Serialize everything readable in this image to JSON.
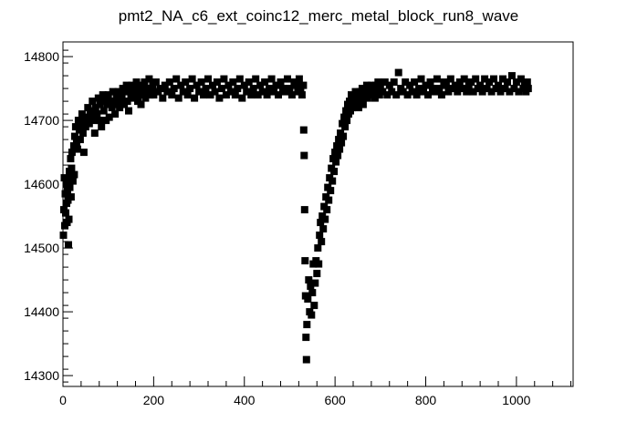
{
  "chart_data": {
    "type": "scatter",
    "title": "pmt2_NA_c6_ext_coinc12_merc_metal_block_run8_wave",
    "xlabel": "",
    "ylabel": "",
    "xlim": [
      0,
      1125
    ],
    "ylim": [
      14283,
      14823
    ],
    "x_ticks": [
      0,
      200,
      400,
      600,
      800,
      1000
    ],
    "y_ticks": [
      14300,
      14400,
      14500,
      14600,
      14700,
      14800
    ],
    "x_tick_labels": [
      "0",
      "200",
      "400",
      "600",
      "800",
      "1000"
    ],
    "y_tick_labels": [
      "14300",
      "14400",
      "14500",
      "14600",
      "14700",
      "14800"
    ],
    "marker": "square",
    "marker_color": "#000000",
    "grid": false,
    "legend": "none",
    "series": [
      {
        "points": [
          [
            1,
            14520
          ],
          [
            2,
            14560
          ],
          [
            3,
            14610
          ],
          [
            4,
            14535
          ],
          [
            5,
            14585
          ],
          [
            6,
            14555
          ],
          [
            7,
            14600
          ],
          [
            8,
            14570
          ],
          [
            9,
            14540
          ],
          [
            10,
            14590
          ],
          [
            11,
            14575
          ],
          [
            12,
            14505
          ],
          [
            13,
            14545
          ],
          [
            14,
            14620
          ],
          [
            15,
            14595
          ],
          [
            16,
            14610
          ],
          [
            17,
            14640
          ],
          [
            18,
            14580
          ],
          [
            19,
            14625
          ],
          [
            20,
            14650
          ],
          [
            22,
            14605
          ],
          [
            24,
            14660
          ],
          [
            25,
            14615
          ],
          [
            26,
            14675
          ],
          [
            28,
            14690
          ],
          [
            30,
            14665
          ],
          [
            32,
            14655
          ],
          [
            34,
            14700
          ],
          [
            36,
            14685
          ],
          [
            38,
            14670
          ],
          [
            40,
            14695
          ],
          [
            42,
            14710
          ],
          [
            44,
            14680
          ],
          [
            46,
            14650
          ],
          [
            48,
            14705
          ],
          [
            50,
            14690
          ],
          [
            52,
            14700
          ],
          [
            55,
            14720
          ],
          [
            58,
            14695
          ],
          [
            60,
            14715
          ],
          [
            62,
            14705
          ],
          [
            65,
            14730
          ],
          [
            68,
            14700
          ],
          [
            70,
            14680
          ],
          [
            72,
            14720
          ],
          [
            75,
            14710
          ],
          [
            78,
            14735
          ],
          [
            80,
            14700
          ],
          [
            82,
            14725
          ],
          [
            85,
            14690
          ],
          [
            88,
            14740
          ],
          [
            90,
            14715
          ],
          [
            92,
            14730
          ],
          [
            95,
            14700
          ],
          [
            98,
            14725
          ],
          [
            100,
            14740
          ],
          [
            102,
            14705
          ],
          [
            105,
            14730
          ],
          [
            108,
            14720
          ],
          [
            110,
            14745
          ],
          [
            112,
            14725
          ],
          [
            115,
            14710
          ],
          [
            118,
            14740
          ],
          [
            120,
            14730
          ],
          [
            122,
            14745
          ],
          [
            125,
            14720
          ],
          [
            128,
            14740
          ],
          [
            130,
            14735
          ],
          [
            132,
            14750
          ],
          [
            135,
            14725
          ],
          [
            138,
            14745
          ],
          [
            140,
            14755
          ],
          [
            142,
            14730
          ],
          [
            145,
            14715
          ],
          [
            148,
            14750
          ],
          [
            150,
            14740
          ],
          [
            152,
            14755
          ],
          [
            155,
            14735
          ],
          [
            158,
            14750
          ],
          [
            160,
            14745
          ],
          [
            162,
            14760
          ],
          [
            165,
            14730
          ],
          [
            168,
            14750
          ],
          [
            170,
            14740
          ],
          [
            172,
            14725
          ],
          [
            175,
            14755
          ],
          [
            178,
            14745
          ],
          [
            180,
            14760
          ],
          [
            182,
            14735
          ],
          [
            185,
            14750
          ],
          [
            188,
            14745
          ],
          [
            190,
            14765
          ],
          [
            192,
            14740
          ],
          [
            195,
            14750
          ],
          [
            198,
            14755
          ],
          [
            200,
            14740
          ],
          [
            205,
            14760
          ],
          [
            210,
            14745
          ],
          [
            215,
            14750
          ],
          [
            220,
            14735
          ],
          [
            225,
            14755
          ],
          [
            230,
            14745
          ],
          [
            235,
            14760
          ],
          [
            240,
            14740
          ],
          [
            245,
            14750
          ],
          [
            250,
            14765
          ],
          [
            255,
            14735
          ],
          [
            260,
            14755
          ],
          [
            265,
            14745
          ],
          [
            270,
            14760
          ],
          [
            275,
            14740
          ],
          [
            280,
            14750
          ],
          [
            285,
            14765
          ],
          [
            290,
            14735
          ],
          [
            295,
            14755
          ],
          [
            300,
            14745
          ],
          [
            305,
            14760
          ],
          [
            310,
            14740
          ],
          [
            315,
            14750
          ],
          [
            320,
            14765
          ],
          [
            325,
            14740
          ],
          [
            330,
            14755
          ],
          [
            335,
            14745
          ],
          [
            340,
            14760
          ],
          [
            345,
            14735
          ],
          [
            350,
            14750
          ],
          [
            355,
            14765
          ],
          [
            360,
            14740
          ],
          [
            365,
            14755
          ],
          [
            370,
            14745
          ],
          [
            375,
            14760
          ],
          [
            380,
            14740
          ],
          [
            385,
            14750
          ],
          [
            390,
            14765
          ],
          [
            395,
            14735
          ],
          [
            400,
            14755
          ],
          [
            405,
            14745
          ],
          [
            410,
            14760
          ],
          [
            415,
            14740
          ],
          [
            420,
            14750
          ],
          [
            425,
            14765
          ],
          [
            430,
            14740
          ],
          [
            435,
            14755
          ],
          [
            440,
            14745
          ],
          [
            445,
            14760
          ],
          [
            450,
            14740
          ],
          [
            455,
            14750
          ],
          [
            460,
            14765
          ],
          [
            465,
            14745
          ],
          [
            470,
            14755
          ],
          [
            475,
            14740
          ],
          [
            480,
            14760
          ],
          [
            485,
            14750
          ],
          [
            490,
            14745
          ],
          [
            495,
            14765
          ],
          [
            500,
            14750
          ],
          [
            505,
            14740
          ],
          [
            510,
            14760
          ],
          [
            515,
            14755
          ],
          [
            518,
            14745
          ],
          [
            521,
            14765
          ],
          [
            524,
            14750
          ],
          [
            527,
            14740
          ],
          [
            530,
            14755
          ],
          [
            531,
            14685
          ],
          [
            532,
            14645
          ],
          [
            533,
            14560
          ],
          [
            534,
            14480
          ],
          [
            535,
            14425
          ],
          [
            536,
            14360
          ],
          [
            537,
            14325
          ],
          [
            538,
            14380
          ],
          [
            540,
            14420
          ],
          [
            542,
            14450
          ],
          [
            544,
            14400
          ],
          [
            546,
            14440
          ],
          [
            548,
            14395
          ],
          [
            550,
            14430
          ],
          [
            552,
            14475
          ],
          [
            554,
            14410
          ],
          [
            556,
            14445
          ],
          [
            558,
            14480
          ],
          [
            560,
            14460
          ],
          [
            562,
            14500
          ],
          [
            564,
            14475
          ],
          [
            566,
            14520
          ],
          [
            568,
            14540
          ],
          [
            570,
            14510
          ],
          [
            572,
            14550
          ],
          [
            574,
            14530
          ],
          [
            576,
            14565
          ],
          [
            578,
            14545
          ],
          [
            580,
            14580
          ],
          [
            582,
            14560
          ],
          [
            584,
            14595
          ],
          [
            586,
            14575
          ],
          [
            588,
            14610
          ],
          [
            590,
            14590
          ],
          [
            592,
            14625
          ],
          [
            594,
            14605
          ],
          [
            596,
            14640
          ],
          [
            598,
            14620
          ],
          [
            600,
            14650
          ],
          [
            602,
            14635
          ],
          [
            604,
            14660
          ],
          [
            606,
            14645
          ],
          [
            608,
            14670
          ],
          [
            610,
            14655
          ],
          [
            612,
            14680
          ],
          [
            614,
            14665
          ],
          [
            616,
            14695
          ],
          [
            618,
            14675
          ],
          [
            620,
            14705
          ],
          [
            622,
            14690
          ],
          [
            624,
            14715
          ],
          [
            626,
            14700
          ],
          [
            628,
            14725
          ],
          [
            630,
            14710
          ],
          [
            632,
            14730
          ],
          [
            634,
            14715
          ],
          [
            636,
            14740
          ],
          [
            638,
            14720
          ],
          [
            640,
            14735
          ],
          [
            642,
            14725
          ],
          [
            645,
            14745
          ],
          [
            648,
            14730
          ],
          [
            650,
            14740
          ],
          [
            652,
            14720
          ],
          [
            655,
            14745
          ],
          [
            658,
            14735
          ],
          [
            660,
            14750
          ],
          [
            662,
            14725
          ],
          [
            665,
            14745
          ],
          [
            668,
            14740
          ],
          [
            670,
            14755
          ],
          [
            672,
            14735
          ],
          [
            675,
            14750
          ],
          [
            678,
            14745
          ],
          [
            680,
            14755
          ],
          [
            682,
            14740
          ],
          [
            685,
            14750
          ],
          [
            688,
            14735
          ],
          [
            690,
            14755
          ],
          [
            692,
            14745
          ],
          [
            695,
            14760
          ],
          [
            698,
            14740
          ],
          [
            700,
            14750
          ],
          [
            705,
            14745
          ],
          [
            710,
            14760
          ],
          [
            715,
            14740
          ],
          [
            720,
            14755
          ],
          [
            725,
            14745
          ],
          [
            730,
            14760
          ],
          [
            735,
            14740
          ],
          [
            740,
            14775
          ],
          [
            745,
            14750
          ],
          [
            750,
            14745
          ],
          [
            755,
            14760
          ],
          [
            760,
            14740
          ],
          [
            765,
            14755
          ],
          [
            770,
            14745
          ],
          [
            775,
            14760
          ],
          [
            780,
            14740
          ],
          [
            785,
            14750
          ],
          [
            790,
            14765
          ],
          [
            795,
            14745
          ],
          [
            800,
            14755
          ],
          [
            805,
            14740
          ],
          [
            810,
            14760
          ],
          [
            815,
            14750
          ],
          [
            820,
            14745
          ],
          [
            825,
            14765
          ],
          [
            830,
            14750
          ],
          [
            835,
            14740
          ],
          [
            840,
            14760
          ],
          [
            845,
            14755
          ],
          [
            850,
            14745
          ],
          [
            855,
            14765
          ],
          [
            860,
            14750
          ],
          [
            865,
            14755
          ],
          [
            870,
            14745
          ],
          [
            875,
            14760
          ],
          [
            880,
            14750
          ],
          [
            885,
            14765
          ],
          [
            890,
            14745
          ],
          [
            895,
            14755
          ],
          [
            900,
            14760
          ],
          [
            905,
            14745
          ],
          [
            910,
            14765
          ],
          [
            915,
            14750
          ],
          [
            920,
            14755
          ],
          [
            925,
            14745
          ],
          [
            930,
            14765
          ],
          [
            935,
            14750
          ],
          [
            940,
            14760
          ],
          [
            945,
            14745
          ],
          [
            950,
            14765
          ],
          [
            955,
            14750
          ],
          [
            960,
            14755
          ],
          [
            965,
            14745
          ],
          [
            970,
            14765
          ],
          [
            975,
            14750
          ],
          [
            980,
            14760
          ],
          [
            985,
            14745
          ],
          [
            990,
            14770
          ],
          [
            995,
            14750
          ],
          [
            1000,
            14760
          ],
          [
            1005,
            14745
          ],
          [
            1010,
            14765
          ],
          [
            1015,
            14750
          ],
          [
            1018,
            14755
          ],
          [
            1021,
            14745
          ],
          [
            1024,
            14760
          ],
          [
            1026,
            14750
          ]
        ]
      }
    ]
  }
}
